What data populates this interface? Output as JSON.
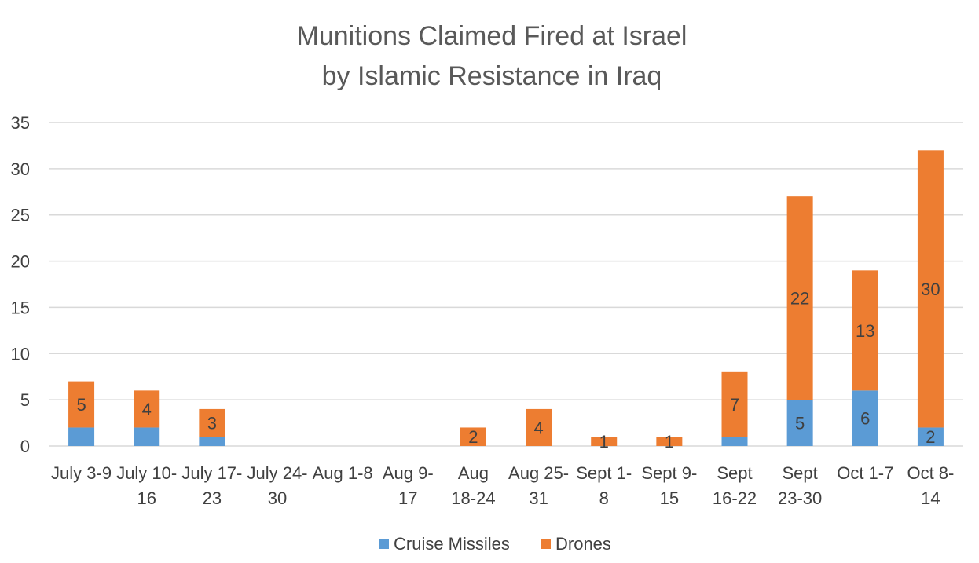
{
  "chart_data": {
    "type": "bar",
    "stacked": true,
    "title": [
      "Munitions Claimed Fired at Israel",
      "by Islamic Resistance in Iraq"
    ],
    "xlabel": "",
    "ylabel": "",
    "ylim": [
      0,
      35
    ],
    "yticks": [
      0,
      5,
      10,
      15,
      20,
      25,
      30,
      35
    ],
    "grid": true,
    "legend_position": "bottom",
    "categories": [
      [
        "July 3-9"
      ],
      [
        "July 10-",
        "16"
      ],
      [
        "July 17-",
        "23"
      ],
      [
        "July 24-",
        "30"
      ],
      [
        "Aug 1-8"
      ],
      [
        "Aug 9-",
        "17"
      ],
      [
        "Aug",
        "18-24"
      ],
      [
        "Aug 25-",
        "31"
      ],
      [
        "Sept 1-",
        "8"
      ],
      [
        "Sept 9-",
        "15"
      ],
      [
        "Sept",
        "16-22"
      ],
      [
        "Sept",
        "23-30"
      ],
      [
        "Oct 1-7"
      ],
      [
        "Oct 8-",
        "14"
      ]
    ],
    "series": [
      {
        "name": "Cruise Missiles",
        "color": "#5b9bd5",
        "values": [
          2,
          2,
          1,
          0,
          0,
          0,
          0,
          0,
          0,
          0,
          1,
          5,
          6,
          2
        ],
        "labels": [
          null,
          null,
          null,
          null,
          null,
          null,
          null,
          null,
          null,
          null,
          null,
          "5",
          "6",
          "2"
        ]
      },
      {
        "name": "Drones",
        "color": "#ed7d31",
        "values": [
          5,
          4,
          3,
          0,
          0,
          0,
          2,
          4,
          1,
          1,
          7,
          22,
          13,
          30
        ],
        "labels": [
          "5",
          "4",
          "3",
          null,
          null,
          null,
          "2",
          "4",
          "1",
          "1",
          "7",
          "22",
          "13",
          "30"
        ]
      }
    ]
  }
}
